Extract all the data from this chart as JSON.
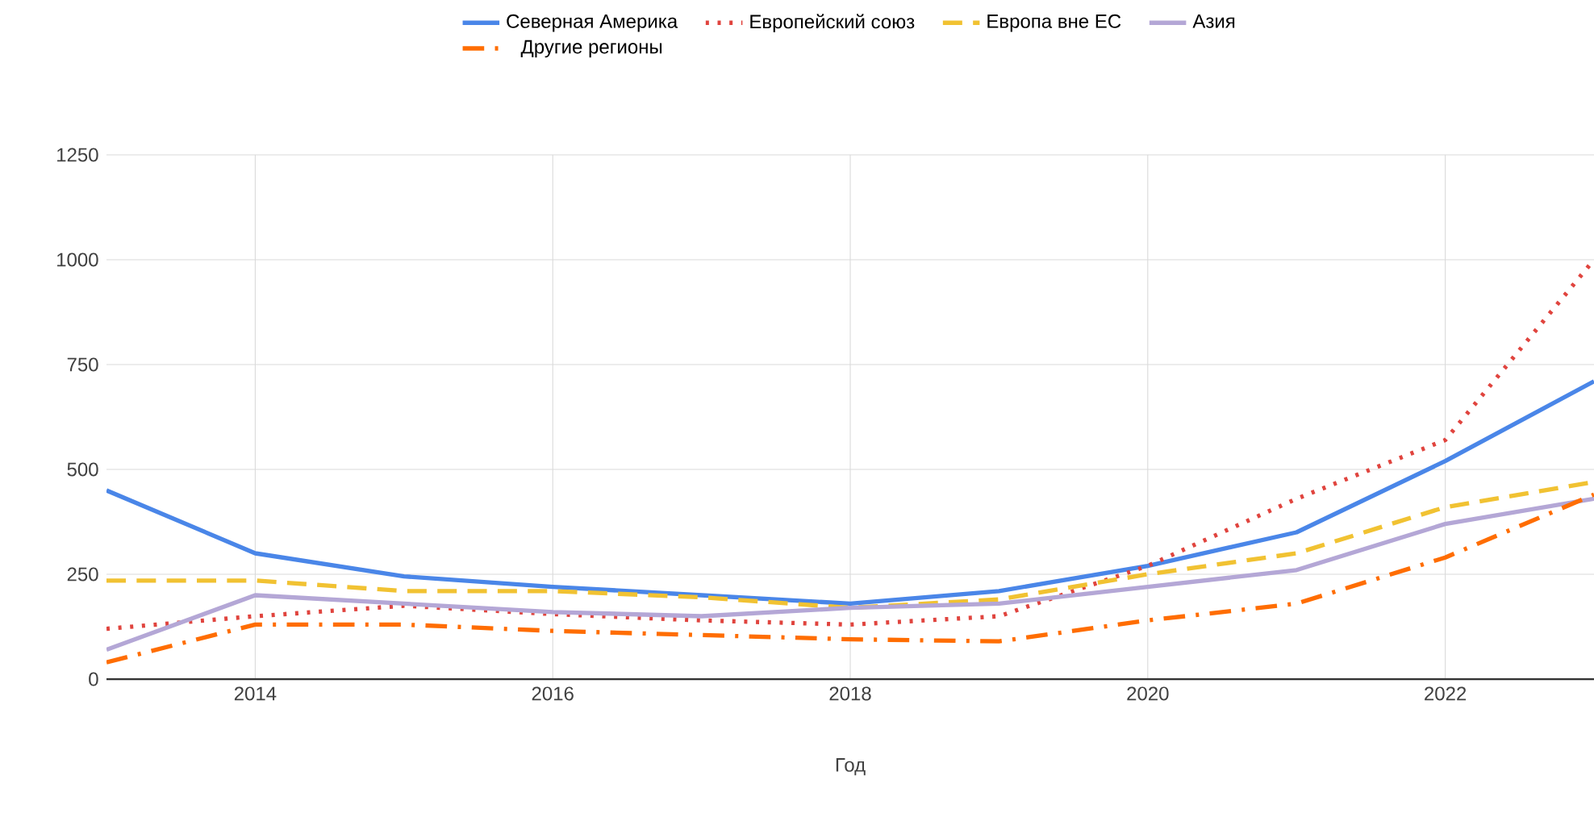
{
  "chart_data": {
    "type": "line",
    "xlabel": "Год",
    "x": [
      2013,
      2014,
      2015,
      2016,
      2017,
      2018,
      2019,
      2020,
      2021,
      2022,
      2023
    ],
    "xlim": [
      2013,
      2023
    ],
    "xticks": [
      2014,
      2016,
      2018,
      2020,
      2022
    ],
    "ylim": [
      0,
      1250
    ],
    "yticks": [
      0,
      250,
      500,
      750,
      1000,
      1250
    ],
    "grid": true,
    "legend": "top",
    "marker": "none",
    "series": [
      {
        "name": "Северная Америка",
        "color": "#4a86e8",
        "line_style": "solid",
        "values": [
          450,
          300,
          245,
          220,
          200,
          180,
          210,
          270,
          350,
          520,
          710
        ]
      },
      {
        "name": "Европейский союз",
        "color": "#e0443e",
        "line_style": "dotted",
        "values": [
          120,
          150,
          175,
          155,
          140,
          130,
          150,
          270,
          430,
          570,
          1000
        ]
      },
      {
        "name": "Европа вне ЕС",
        "color": "#f1c232",
        "line_style": "dashed",
        "values": [
          235,
          235,
          210,
          210,
          195,
          170,
          190,
          250,
          300,
          410,
          470
        ]
      },
      {
        "name": "Азия",
        "color": "#b4a7d6",
        "line_style": "solid",
        "values": [
          70,
          200,
          180,
          160,
          150,
          170,
          180,
          220,
          260,
          370,
          430
        ]
      },
      {
        "name": "Другие регионы",
        "color": "#ff6d01",
        "line_style": "dashdotted",
        "values": [
          40,
          130,
          130,
          115,
          105,
          95,
          90,
          140,
          180,
          290,
          440
        ]
      }
    ]
  }
}
